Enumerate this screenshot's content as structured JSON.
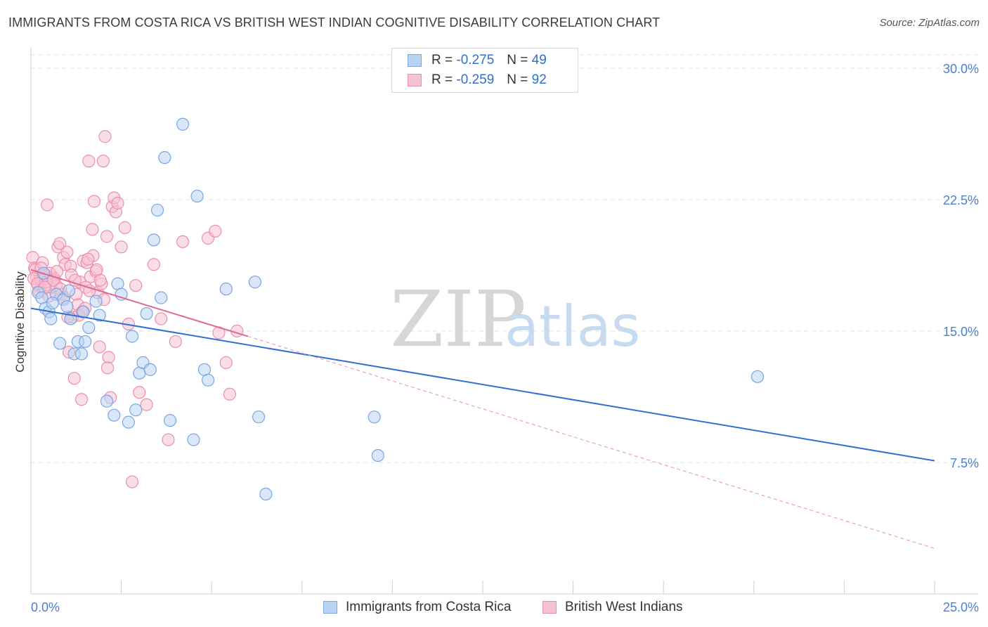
{
  "title": "IMMIGRANTS FROM COSTA RICA VS BRITISH WEST INDIAN COGNITIVE DISABILITY CORRELATION CHART",
  "source": "Source: ZipAtlas.com",
  "watermark": {
    "zip": "ZIP",
    "atlas": "atlas"
  },
  "legend": {
    "r_label": "R =",
    "n_label": "N =",
    "series": [
      {
        "r": "-0.275",
        "n": "49"
      },
      {
        "r": "-0.259",
        "n": "92"
      }
    ]
  },
  "colors": {
    "blue_fill": "#b9d3f3",
    "blue_stroke": "#7aa6e0",
    "blue_line": "#2f6fd0",
    "pink_fill": "#f6c3d3",
    "pink_stroke": "#ea8fab",
    "pink_line": "#e0688e"
  },
  "chart_data": {
    "type": "scatter",
    "title": "IMMIGRANTS FROM COSTA RICA VS BRITISH WEST INDIAN COGNITIVE DISABILITY CORRELATION CHART",
    "xlabel": "",
    "ylabel": "Cognitive Disability",
    "xlim": [
      0,
      25
    ],
    "ylim": [
      0,
      31
    ],
    "x_tick_labels": [
      {
        "value": 0,
        "label": "0.0%"
      },
      {
        "value": 25,
        "label": "25.0%"
      }
    ],
    "x_minor_ticks": [
      0,
      2.5,
      5,
      7.5,
      10,
      12.5,
      15,
      17.5,
      20,
      22.5,
      25
    ],
    "y_ticks": [
      {
        "value": 7.5,
        "label": "7.5%"
      },
      {
        "value": 15,
        "label": "15.0%"
      },
      {
        "value": 22.5,
        "label": "22.5%"
      },
      {
        "value": 30,
        "label": "30.0%"
      }
    ],
    "grid": true,
    "legend_position": "top-center",
    "series": [
      {
        "name": "Immigrants from Costa Rica",
        "color": "#7aa6e0",
        "trend": {
          "x0": 0,
          "y0": 16.3,
          "x1": 25,
          "y1": 7.6,
          "style": "solid"
        },
        "points": [
          [
            0.2,
            17.2
          ],
          [
            0.3,
            16.9
          ],
          [
            0.35,
            18.3
          ],
          [
            0.4,
            16.3
          ],
          [
            0.5,
            16.1
          ],
          [
            0.55,
            15.7
          ],
          [
            0.7,
            17.1
          ],
          [
            0.8,
            14.3
          ],
          [
            0.9,
            16.8
          ],
          [
            1.0,
            16.4
          ],
          [
            1.1,
            15.7
          ],
          [
            1.2,
            13.7
          ],
          [
            1.3,
            14.4
          ],
          [
            1.4,
            13.7
          ],
          [
            1.5,
            14.4
          ],
          [
            1.6,
            15.2
          ],
          [
            1.8,
            16.7
          ],
          [
            1.9,
            15.9
          ],
          [
            2.1,
            11.0
          ],
          [
            2.3,
            10.2
          ],
          [
            2.4,
            17.7
          ],
          [
            2.5,
            17.1
          ],
          [
            2.7,
            9.8
          ],
          [
            2.8,
            14.7
          ],
          [
            2.9,
            10.5
          ],
          [
            3.0,
            12.6
          ],
          [
            3.1,
            13.2
          ],
          [
            3.2,
            16.0
          ],
          [
            3.3,
            12.8
          ],
          [
            3.4,
            20.2
          ],
          [
            3.5,
            21.9
          ],
          [
            3.6,
            16.9
          ],
          [
            3.7,
            24.9
          ],
          [
            3.85,
            9.9
          ],
          [
            4.2,
            26.8
          ],
          [
            4.5,
            8.8
          ],
          [
            4.6,
            22.7
          ],
          [
            4.8,
            12.8
          ],
          [
            4.9,
            12.2
          ],
          [
            5.4,
            17.4
          ],
          [
            6.2,
            17.8
          ],
          [
            6.3,
            10.1
          ],
          [
            6.5,
            5.7
          ],
          [
            9.5,
            10.1
          ],
          [
            9.6,
            7.9
          ],
          [
            20.1,
            12.4
          ],
          [
            1.05,
            17.3
          ],
          [
            1.45,
            16.1
          ],
          [
            0.6,
            16.6
          ]
        ]
      },
      {
        "name": "British West Indians",
        "color": "#ea8fab",
        "trend": {
          "x0": 0,
          "y0": 18.5,
          "x1": 6.0,
          "y1": 14.7,
          "style": "solid",
          "ext_x1": 25,
          "ext_y1": 2.6
        },
        "points": [
          [
            0.05,
            19.2
          ],
          [
            0.1,
            18.6
          ],
          [
            0.15,
            18.1
          ],
          [
            0.2,
            17.6
          ],
          [
            0.25,
            18.0
          ],
          [
            0.3,
            17.9
          ],
          [
            0.35,
            17.4
          ],
          [
            0.4,
            18.2
          ],
          [
            0.45,
            22.2
          ],
          [
            0.5,
            17.0
          ],
          [
            0.55,
            17.5
          ],
          [
            0.6,
            18.1
          ],
          [
            0.65,
            18.0
          ],
          [
            0.7,
            17.6
          ],
          [
            0.75,
            19.8
          ],
          [
            0.8,
            20.0
          ],
          [
            0.85,
            17.1
          ],
          [
            0.9,
            19.2
          ],
          [
            0.95,
            18.8
          ],
          [
            1.0,
            19.5
          ],
          [
            1.05,
            13.8
          ],
          [
            1.1,
            18.7
          ],
          [
            1.15,
            15.8
          ],
          [
            1.2,
            12.3
          ],
          [
            1.25,
            17.1
          ],
          [
            1.3,
            16.5
          ],
          [
            1.35,
            17.8
          ],
          [
            1.4,
            11.1
          ],
          [
            1.45,
            19.0
          ],
          [
            1.5,
            16.3
          ],
          [
            1.55,
            18.9
          ],
          [
            1.6,
            24.7
          ],
          [
            1.65,
            18.1
          ],
          [
            1.7,
            20.8
          ],
          [
            1.75,
            22.4
          ],
          [
            1.8,
            18.4
          ],
          [
            1.85,
            17.2
          ],
          [
            1.9,
            14.1
          ],
          [
            1.95,
            17.7
          ],
          [
            2.0,
            24.7
          ],
          [
            2.05,
            26.1
          ],
          [
            2.1,
            20.4
          ],
          [
            2.15,
            13.5
          ],
          [
            2.2,
            11.2
          ],
          [
            2.25,
            22.1
          ],
          [
            2.3,
            22.6
          ],
          [
            2.35,
            21.8
          ],
          [
            2.4,
            22.3
          ],
          [
            2.5,
            19.8
          ],
          [
            2.6,
            20.9
          ],
          [
            2.7,
            15.4
          ],
          [
            2.8,
            6.4
          ],
          [
            2.9,
            17.6
          ],
          [
            3.0,
            11.5
          ],
          [
            3.2,
            10.8
          ],
          [
            3.4,
            18.8
          ],
          [
            3.6,
            15.7
          ],
          [
            3.8,
            8.8
          ],
          [
            4.0,
            14.4
          ],
          [
            4.2,
            20.1
          ],
          [
            4.9,
            20.3
          ],
          [
            5.1,
            20.7
          ],
          [
            5.2,
            14.9
          ],
          [
            5.4,
            13.2
          ],
          [
            5.5,
            11.4
          ],
          [
            5.7,
            15.0
          ],
          [
            0.12,
            18.5
          ],
          [
            0.22,
            17.3
          ],
          [
            0.32,
            18.9
          ],
          [
            0.42,
            17.8
          ],
          [
            0.52,
            18.3
          ],
          [
            0.62,
            17.9
          ],
          [
            0.72,
            18.4
          ],
          [
            0.82,
            17.4
          ],
          [
            0.92,
            16.9
          ],
          [
            1.02,
            15.8
          ],
          [
            1.12,
            18.2
          ],
          [
            1.22,
            17.9
          ],
          [
            1.32,
            15.9
          ],
          [
            1.42,
            16.1
          ],
          [
            1.52,
            17.5
          ],
          [
            1.62,
            17.3
          ],
          [
            1.72,
            19.3
          ],
          [
            1.82,
            18.5
          ],
          [
            1.92,
            17.9
          ],
          [
            2.02,
            16.8
          ],
          [
            2.12,
            12.9
          ],
          [
            0.08,
            18.0
          ],
          [
            0.18,
            17.7
          ],
          [
            0.28,
            18.6
          ],
          [
            0.38,
            17.5
          ],
          [
            1.58,
            19.1
          ]
        ]
      }
    ]
  },
  "bottom_legend": [
    {
      "label": "Immigrants from Costa Rica"
    },
    {
      "label": "British West Indians"
    }
  ]
}
